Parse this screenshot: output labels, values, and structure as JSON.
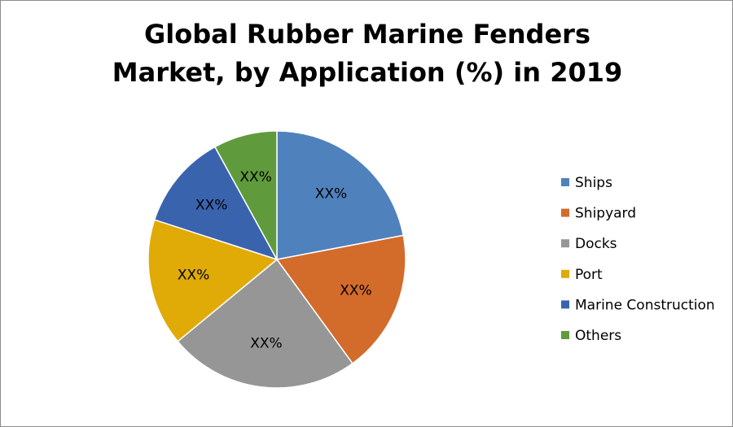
{
  "chart_data": {
    "type": "pie",
    "title": "Global Rubber Marine Fenders Market, by Application (%) in 2019",
    "categories": [
      "Ships",
      "Shipyard",
      "Docks",
      "Port",
      "Marine Construction",
      "Others"
    ],
    "values": [
      22,
      18,
      24,
      16,
      12,
      8
    ],
    "value_labels": [
      "XX%",
      "XX%",
      "XX%",
      "XX%",
      "XX%",
      "XX%"
    ],
    "colors": [
      "#4f81bd",
      "#d36b2b",
      "#969696",
      "#e0aa07",
      "#3a63ae",
      "#5f9b3c"
    ],
    "legend": "right"
  }
}
